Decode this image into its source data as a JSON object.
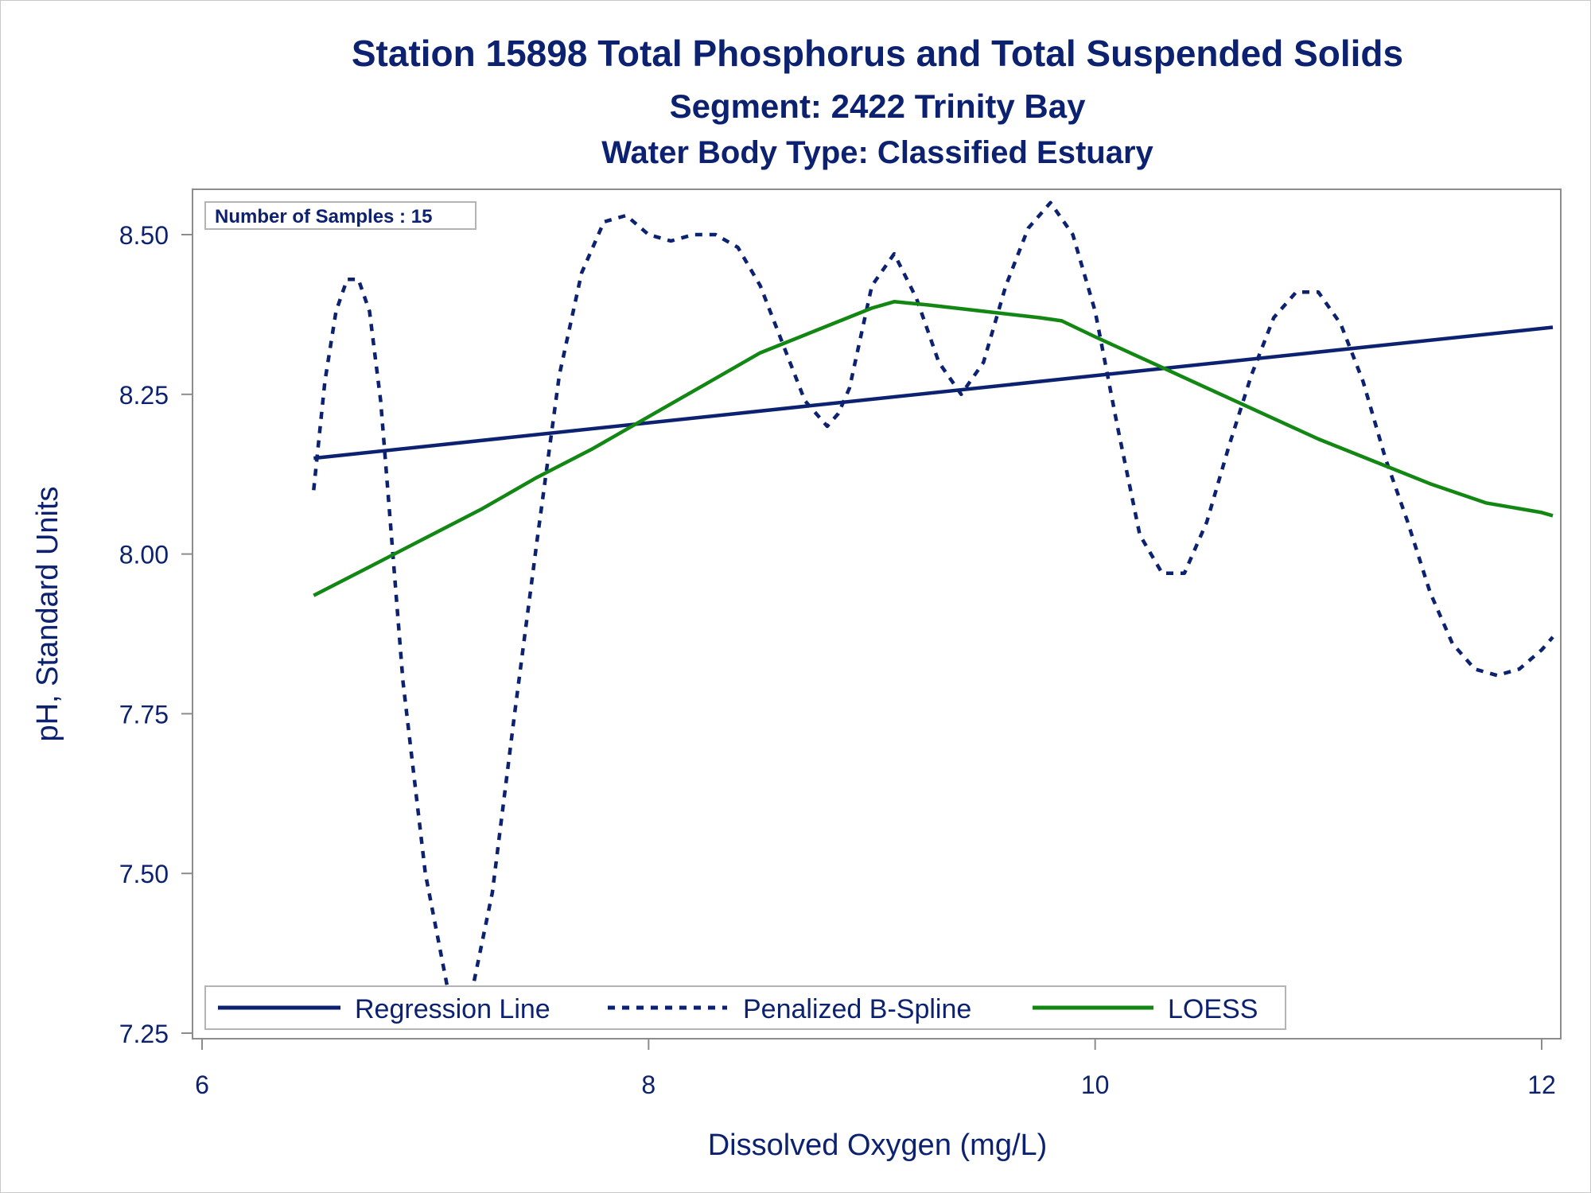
{
  "chart_data": {
    "type": "line",
    "title": "Station 15898  Total Phosphorus and Total Suspended Solids",
    "subtitle": "Segment: 2422  Trinity Bay",
    "subtitle2": "Water Body Type: Classified Estuary",
    "xlabel": "Dissolved Oxygen (mg/L)",
    "ylabel": "pH, Standard Units",
    "xlim": [
      6,
      12.05
    ],
    "ylim": [
      7.25,
      8.57
    ],
    "xticks": [
      6,
      8,
      10,
      12
    ],
    "xtick_labels": [
      "6",
      "8",
      "10",
      "12"
    ],
    "yticks": [
      7.25,
      7.5,
      7.75,
      8.0,
      8.25,
      8.5
    ],
    "ytick_labels": [
      "7.25",
      "7.50",
      "7.75",
      "8.00",
      "8.25",
      "8.50"
    ],
    "grid": false,
    "inset_label": "Number of Samples : 15",
    "legend_position": "bottom-inside",
    "series": [
      {
        "name": "Regression Line",
        "style": "solid",
        "color": "#0c2270",
        "x": [
          6.5,
          12.05
        ],
        "y": [
          8.15,
          8.355
        ]
      },
      {
        "name": "Penalized B-Spline",
        "style": "dashed",
        "color": "#0c2270",
        "x": [
          6.5,
          6.55,
          6.6,
          6.65,
          6.7,
          6.75,
          6.8,
          6.85,
          6.9,
          7.0,
          7.1,
          7.2,
          7.3,
          7.4,
          7.5,
          7.6,
          7.7,
          7.8,
          7.9,
          8.0,
          8.1,
          8.2,
          8.3,
          8.4,
          8.5,
          8.6,
          8.7,
          8.8,
          8.85,
          8.9,
          9.0,
          9.1,
          9.2,
          9.3,
          9.4,
          9.5,
          9.6,
          9.7,
          9.8,
          9.9,
          10.0,
          10.1,
          10.2,
          10.3,
          10.4,
          10.5,
          10.6,
          10.7,
          10.8,
          10.9,
          11.0,
          11.1,
          11.2,
          11.3,
          11.4,
          11.5,
          11.6,
          11.7,
          11.8,
          11.9,
          12.0,
          12.05
        ],
        "y": [
          8.1,
          8.27,
          8.38,
          8.43,
          8.43,
          8.38,
          8.24,
          8.02,
          7.8,
          7.5,
          7.32,
          7.3,
          7.47,
          7.75,
          8.02,
          8.28,
          8.44,
          8.52,
          8.53,
          8.5,
          8.49,
          8.5,
          8.5,
          8.48,
          8.42,
          8.33,
          8.24,
          8.2,
          8.22,
          8.26,
          8.42,
          8.47,
          8.4,
          8.3,
          8.25,
          8.3,
          8.42,
          8.51,
          8.55,
          8.5,
          8.38,
          8.2,
          8.03,
          7.97,
          7.97,
          8.05,
          8.17,
          8.28,
          8.37,
          8.41,
          8.41,
          8.36,
          8.27,
          8.15,
          8.05,
          7.94,
          7.86,
          7.82,
          7.81,
          7.82,
          7.85,
          7.87
        ]
      },
      {
        "name": "LOESS",
        "style": "solid",
        "color": "#138713",
        "x": [
          6.5,
          6.75,
          7.0,
          7.25,
          7.5,
          7.75,
          8.0,
          8.25,
          8.5,
          8.75,
          9.0,
          9.1,
          9.25,
          9.5,
          9.75,
          9.85,
          10.0,
          10.25,
          10.5,
          10.75,
          11.0,
          11.25,
          11.5,
          11.75,
          12.0,
          12.05
        ],
        "y": [
          7.935,
          7.98,
          8.025,
          8.07,
          8.12,
          8.165,
          8.215,
          8.265,
          8.315,
          8.35,
          8.385,
          8.395,
          8.39,
          8.38,
          8.37,
          8.365,
          8.34,
          8.3,
          8.26,
          8.22,
          8.18,
          8.145,
          8.11,
          8.08,
          8.065,
          8.06
        ]
      }
    ]
  }
}
